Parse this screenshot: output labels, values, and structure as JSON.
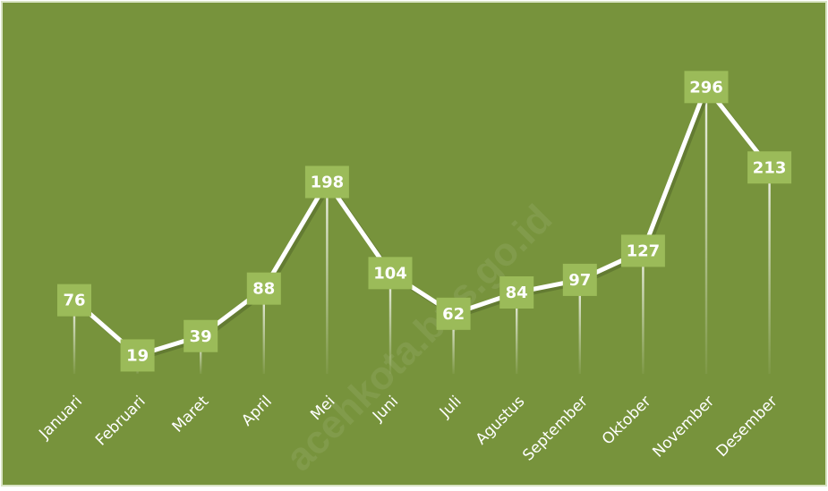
{
  "chart_data": {
    "type": "line",
    "categories": [
      "Januari",
      "Februari",
      "Maret",
      "April",
      "Mei",
      "Juni",
      "Juli",
      "Agustus",
      "September",
      "Oktober",
      "November",
      "Desember"
    ],
    "values": [
      76,
      19,
      39,
      88,
      198,
      104,
      62,
      84,
      97,
      127,
      296,
      213
    ],
    "color": "#ffffff",
    "label_color": "#9bbb59",
    "background": "#77933c",
    "ylim": [
      0,
      300
    ],
    "watermark": "acehkota.bps.go.id"
  }
}
